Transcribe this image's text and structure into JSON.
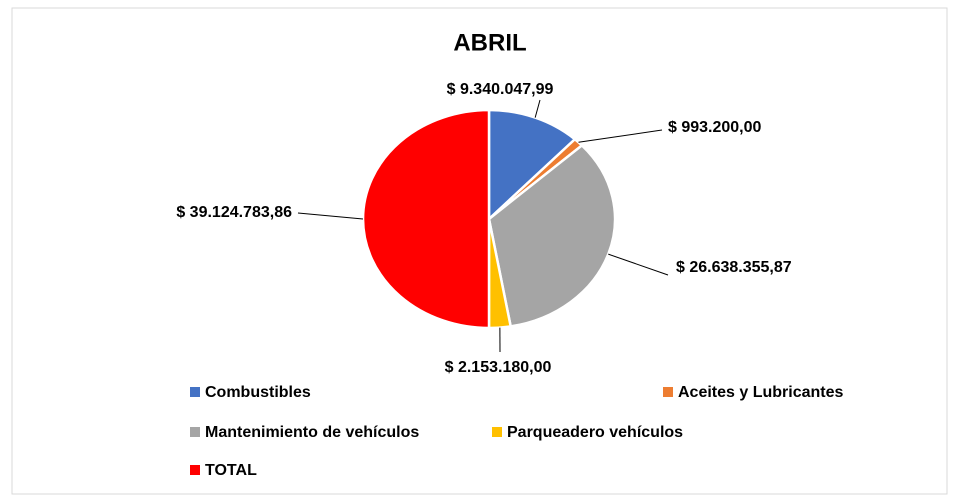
{
  "chart_data": {
    "type": "pie",
    "title": "ABRIL",
    "categories": [
      "Combustibles",
      "Aceites y Lubricantes",
      "Mantenimiento de vehículos",
      "Parqueadero vehículos",
      "TOTAL"
    ],
    "values": [
      9340047.99,
      993200.0,
      26638355.87,
      2153180.0,
      39124783.86
    ],
    "value_labels": [
      "$ 9.340.047,99",
      "$ 993.200,00",
      "$ 26.638.355,87",
      "$ 2.153.180,00",
      "$ 39.124.783,86"
    ],
    "colors": [
      "#4472c4",
      "#ed7d31",
      "#a5a5a5",
      "#ffc000",
      "#ff0000"
    ],
    "legend": "bottom"
  }
}
